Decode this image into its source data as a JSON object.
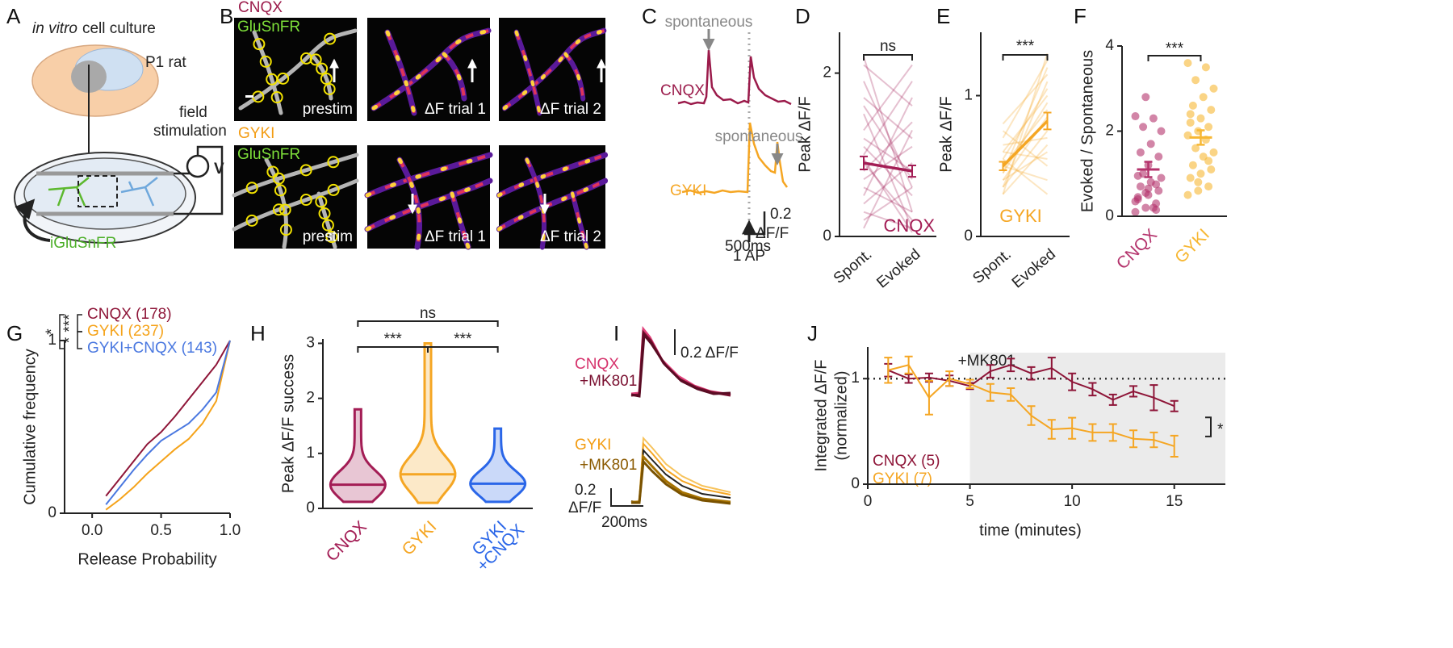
{
  "panel_labels": [
    "A",
    "B",
    "C",
    "D",
    "E",
    "F",
    "G",
    "H",
    "I",
    "J"
  ],
  "panel_a": {
    "culture_italic": "in vitro",
    "culture": "cell culture",
    "animal": "P1 rat",
    "stimulation": [
      "field",
      "stimulation"
    ],
    "voltage": "V",
    "sensor": "iGluSnFR"
  },
  "panel_b": {
    "rows": [
      {
        "drug": "CNQX",
        "sensor": "GluSnFR",
        "images": [
          "prestim",
          "ΔF trial 1",
          "ΔF trial 2"
        ]
      },
      {
        "drug": "GYKI",
        "sensor": "GluSnFR",
        "images": [
          "prestim",
          "ΔF trial 1",
          "ΔF trial 2"
        ]
      }
    ]
  },
  "panel_c": {
    "traces": [
      "CNQX",
      "GYKI"
    ],
    "annotations": [
      "spontaneous",
      "spontaneous"
    ],
    "stimulus": "1 AP",
    "scale_y": [
      "0.2",
      "ΔF/F"
    ],
    "scale_x": "500ms"
  },
  "panel_i": {
    "groups": [
      {
        "drug": "CNQX",
        "treatment": "+MK801"
      },
      {
        "drug": "GYKI",
        "treatment": "+MK801"
      }
    ],
    "scale_y_top": "0.2 ΔF/F",
    "scale_y_bottom": [
      "0.2",
      "ΔF/F"
    ],
    "scale_x": "200ms"
  },
  "chart_data": [
    {
      "type": "line",
      "ylabel": "Peak ΔF/F",
      "categories": [
        "Spont.",
        "Evoked"
      ],
      "ylim": [
        0,
        2.5
      ],
      "yticks": [
        0,
        2
      ],
      "significance": "ns",
      "legend": "bottom-right",
      "series": [
        {
          "name": "CNQX",
          "color": "#a31d55",
          "values": [
            0.9,
            0.8
          ],
          "errors": [
            0.08,
            0.07
          ]
        }
      ],
      "pairs": [
        [
          2.2,
          0.3
        ],
        [
          2.1,
          1.6
        ],
        [
          1.9,
          0.6
        ],
        [
          1.7,
          1.2
        ],
        [
          1.5,
          0.1
        ],
        [
          1.3,
          2.1
        ],
        [
          1.1,
          0.5
        ],
        [
          1.0,
          1.9
        ],
        [
          0.9,
          0.2
        ],
        [
          0.8,
          1.4
        ],
        [
          0.7,
          1.1
        ],
        [
          0.6,
          0.3
        ],
        [
          0.5,
          1.7
        ],
        [
          0.4,
          0.9
        ],
        [
          0.3,
          0.1
        ],
        [
          0.2,
          0.6
        ],
        [
          0.1,
          1.3
        ],
        [
          1.2,
          0.8
        ],
        [
          0.95,
          0.05
        ],
        [
          1.6,
          0.7
        ]
      ]
    },
    {
      "type": "line",
      "ylabel": "Peak ΔF/F",
      "categories": [
        "Spont.",
        "Evoked"
      ],
      "ylim": [
        0,
        1.45
      ],
      "yticks": [
        0,
        1
      ],
      "significance": "***",
      "legend": "bottom",
      "series": [
        {
          "name": "GYKI",
          "color": "#f5a623",
          "values": [
            0.5,
            0.82
          ],
          "errors": [
            0.03,
            0.06
          ]
        }
      ],
      "pairs": [
        [
          0.3,
          1.3
        ],
        [
          0.35,
          1.1
        ],
        [
          0.4,
          0.6
        ],
        [
          0.45,
          1.2
        ],
        [
          0.5,
          0.9
        ],
        [
          0.55,
          0.3
        ],
        [
          0.6,
          1.0
        ],
        [
          0.65,
          0.7
        ],
        [
          0.7,
          1.25
        ],
        [
          0.75,
          0.5
        ],
        [
          0.4,
          0.85
        ],
        [
          0.5,
          0.4
        ],
        [
          0.55,
          1.05
        ],
        [
          0.35,
          0.75
        ],
        [
          0.6,
          0.55
        ],
        [
          0.45,
          0.95
        ],
        [
          0.8,
          1.15
        ],
        [
          0.3,
          0.65
        ]
      ]
    },
    {
      "type": "scatter",
      "ylabel": "Evoked / Spontaneous",
      "categories": [
        "CNQX",
        "GYKI"
      ],
      "colors": [
        "#b4336c",
        "#f7b733"
      ],
      "ylim": [
        0,
        4
      ],
      "yticks": [
        0,
        2,
        4
      ],
      "significance": "***",
      "points": [
        [
          0.1,
          0.2,
          0.3,
          0.4,
          0.5,
          0.6,
          0.7,
          0.8,
          0.9,
          1.0,
          0.2,
          0.35,
          0.55,
          0.75,
          0.95,
          1.2,
          1.4,
          1.5,
          1.7,
          2.0,
          2.1,
          2.3,
          2.35,
          2.8,
          0.15,
          0.45,
          0.65
        ],
        [
          0.5,
          0.6,
          0.7,
          0.9,
          1.0,
          1.1,
          1.2,
          1.4,
          1.5,
          1.6,
          1.8,
          1.9,
          2.0,
          2.1,
          2.2,
          2.3,
          2.5,
          2.6,
          2.8,
          3.0,
          3.2,
          3.5,
          3.6,
          0.8,
          1.3,
          2.4
        ]
      ],
      "means": [
        1.1,
        1.85
      ],
      "errors": [
        0.18,
        0.17
      ]
    },
    {
      "type": "line",
      "xlabel": "Release Probability",
      "ylabel": "Cumulative frequency",
      "x": [
        0.1,
        0.2,
        0.3,
        0.4,
        0.5,
        0.6,
        0.7,
        0.8,
        0.9,
        1.0
      ],
      "xlim": [
        -0.2,
        1
      ],
      "xticks": [
        {
          "value": 0,
          "label": "0.0"
        },
        0.5,
        {
          "value": 1,
          "label": "1.0"
        }
      ],
      "ylim": [
        0,
        1
      ],
      "yticks": [
        0,
        1
      ],
      "legend": "top-left",
      "significance": [
        "***",
        "*",
        "*"
      ],
      "series": [
        {
          "name": "CNQX (178)",
          "color": "#8e1538",
          "values": [
            0.1,
            0.2,
            0.3,
            0.4,
            0.47,
            0.56,
            0.66,
            0.76,
            0.86,
            1.0
          ]
        },
        {
          "name": "GYKI (237)",
          "color": "#f5a31a",
          "values": [
            0.02,
            0.08,
            0.15,
            0.23,
            0.3,
            0.37,
            0.43,
            0.52,
            0.65,
            1.0
          ]
        },
        {
          "name": "GYKI+CNQX (143)",
          "color": "#4a78e0",
          "values": [
            0.05,
            0.15,
            0.25,
            0.34,
            0.42,
            0.47,
            0.52,
            0.6,
            0.7,
            1.0
          ]
        }
      ]
    },
    {
      "type": "violin",
      "ylabel": "Peak ΔF/F success",
      "category_lines": [
        [
          "CNQX"
        ],
        [
          "GYKI"
        ],
        [
          "GYKI",
          "+CNQX"
        ]
      ],
      "colors": [
        "#a31d55",
        "#f5a623",
        "#2a66e8"
      ],
      "ylim": [
        0,
        3.08
      ],
      "yticks": [
        0,
        1,
        2,
        3
      ],
      "medians": [
        0.43,
        0.62,
        0.45
      ],
      "mins": [
        0.12,
        0.1,
        0.12
      ],
      "maxs": [
        1.8,
        3.0,
        1.45
      ],
      "significance": [
        "***",
        "***",
        "ns"
      ]
    },
    {
      "type": "line",
      "xlabel": "time (minutes)",
      "ylabel": [
        "Integrated ΔF/F",
        "(normalized)"
      ],
      "x": [
        1,
        2,
        3,
        4,
        5,
        6,
        7,
        8,
        9,
        10,
        11,
        12,
        13,
        14,
        15
      ],
      "xlim": [
        0,
        17.5
      ],
      "xticks": [
        0,
        5,
        10,
        15
      ],
      "ylim": [
        0,
        1.3
      ],
      "yticks": [
        0,
        1
      ],
      "reference": 1,
      "shade_from": 5,
      "shade_label": "+MK801",
      "significance": "*",
      "legend": "bottom-left",
      "series": [
        {
          "name": "CNQX (5)",
          "color": "#8e1538",
          "values": [
            1.08,
            1.0,
            1.01,
            0.98,
            0.93,
            1.07,
            1.13,
            1.05,
            1.1,
            0.97,
            0.9,
            0.8,
            0.88,
            0.82,
            0.74
          ],
          "errors": [
            0.06,
            0.04,
            0.04,
            0.05,
            0.03,
            0.06,
            0.06,
            0.06,
            0.1,
            0.08,
            0.06,
            0.05,
            0.05,
            0.12,
            0.05
          ]
        },
        {
          "name": "GYKI (7)",
          "color": "#f5a623",
          "values": [
            1.08,
            1.13,
            0.82,
            1.0,
            0.95,
            0.87,
            0.85,
            0.65,
            0.52,
            0.53,
            0.49,
            0.49,
            0.43,
            0.42,
            0.36
          ],
          "errors": [
            0.12,
            0.08,
            0.16,
            0.07,
            0.04,
            0.08,
            0.06,
            0.09,
            0.09,
            0.1,
            0.08,
            0.08,
            0.08,
            0.07,
            0.1
          ]
        }
      ]
    }
  ]
}
